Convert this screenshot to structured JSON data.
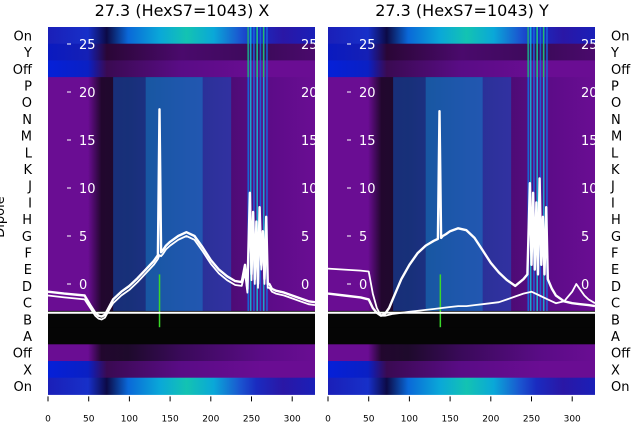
{
  "chart_data": [
    {
      "type": "heatmap",
      "title": "27.3 (HexS7=1043) X",
      "ylabel": "Dipole",
      "dipole_labels": [
        "On",
        "Y",
        "Off",
        "P",
        "O",
        "N",
        "M",
        "L",
        "K",
        "J",
        "I",
        "H",
        "G",
        "F",
        "E",
        "D",
        "C",
        "B",
        "A",
        "Off",
        "X",
        "On"
      ],
      "xticks": [
        0,
        50,
        100,
        150,
        200,
        250,
        300
      ],
      "xlim": [
        0,
        328
      ],
      "overlay_yticks": [
        25,
        20,
        15,
        10,
        5,
        0
      ],
      "overlay_ylim": [
        -4,
        27
      ],
      "baseline_y": -3,
      "series": [
        {
          "x": [
            0,
            20,
            45,
            52,
            58,
            62,
            66,
            70,
            75,
            80,
            90,
            100,
            110,
            120,
            130,
            135,
            137,
            139,
            141,
            145,
            150,
            160,
            170,
            180,
            190,
            200,
            210,
            220,
            230,
            238,
            242,
            245,
            248,
            250,
            252,
            254,
            256,
            258,
            260,
            262,
            264,
            266,
            268,
            270,
            272,
            275,
            280,
            290,
            300,
            310,
            320,
            328
          ],
          "y": [
            -0.8,
            -1.0,
            -1.2,
            -2.2,
            -3.0,
            -3.3,
            -3.4,
            -3.2,
            -2.4,
            -1.6,
            -0.8,
            -0.2,
            0.6,
            1.5,
            2.4,
            3.0,
            18.2,
            3.3,
            3.5,
            4.0,
            4.4,
            5.0,
            5.4,
            5.0,
            3.8,
            2.5,
            1.5,
            0.8,
            0.3,
            0.2,
            2.0,
            -0.5,
            9.5,
            1.0,
            7.5,
            0.5,
            6.5,
            0.0,
            8.0,
            2.0,
            5.5,
            0.5,
            7.0,
            0.0,
            0.0,
            -0.5,
            -0.7,
            -0.9,
            -1.2,
            -1.5,
            -1.8,
            -1.9
          ]
        },
        {
          "x": [
            0,
            20,
            45,
            52,
            58,
            62,
            66,
            70,
            75,
            80,
            90,
            100,
            110,
            120,
            130,
            135,
            137,
            139,
            141,
            145,
            150,
            160,
            170,
            180,
            190,
            200,
            210,
            220,
            230,
            238,
            242,
            245,
            248,
            250,
            252,
            254,
            256,
            258,
            260,
            262,
            264,
            266,
            268,
            270,
            272,
            275,
            280,
            290,
            300,
            310,
            320,
            328
          ],
          "y": [
            -1.2,
            -1.4,
            -1.6,
            -2.5,
            -3.3,
            -3.6,
            -3.7,
            -3.5,
            -2.7,
            -2.0,
            -1.2,
            -0.6,
            0.2,
            1.1,
            2.0,
            2.6,
            3.0,
            2.9,
            3.1,
            3.6,
            4.0,
            4.6,
            5.0,
            4.6,
            3.4,
            2.1,
            1.1,
            0.4,
            -0.1,
            -0.2,
            1.2,
            -0.9,
            7.5,
            0.4,
            6.0,
            0.0,
            5.5,
            -0.4,
            6.5,
            1.5,
            4.5,
            0.0,
            5.5,
            -0.4,
            -0.4,
            -0.8,
            -1.0,
            -1.2,
            -1.5,
            -1.8,
            -2.1,
            -2.2
          ]
        }
      ],
      "green_line_x": 137
    },
    {
      "type": "heatmap",
      "title": "27.3 (HexS7=1043) Y",
      "dipole_labels": [
        "On",
        "Y",
        "Off",
        "P",
        "O",
        "N",
        "M",
        "L",
        "K",
        "J",
        "I",
        "H",
        "G",
        "F",
        "E",
        "D",
        "C",
        "B",
        "A",
        "Off",
        "X",
        "On"
      ],
      "xticks": [
        0,
        50,
        100,
        150,
        200,
        250,
        300
      ],
      "xlim": [
        0,
        328
      ],
      "overlay_yticks": [
        25,
        20,
        15,
        10,
        5,
        0
      ],
      "overlay_ylim": [
        -4,
        27
      ],
      "baseline_y": -3,
      "series": [
        {
          "x": [
            0,
            20,
            40,
            50,
            55,
            60,
            65,
            70,
            75,
            80,
            90,
            100,
            110,
            120,
            130,
            135,
            137,
            139,
            141,
            145,
            150,
            160,
            170,
            180,
            190,
            200,
            210,
            220,
            230,
            240,
            245,
            248,
            250,
            252,
            254,
            256,
            258,
            260,
            262,
            264,
            266,
            268,
            270,
            275,
            280,
            290,
            300,
            310,
            320,
            328
          ],
          "y": [
            -1.0,
            -1.2,
            -1.4,
            -1.6,
            -2.5,
            -3.0,
            -3.3,
            -3.1,
            -2.5,
            -1.5,
            0.5,
            2.0,
            3.2,
            4.0,
            4.5,
            4.7,
            18.0,
            4.8,
            5.0,
            5.2,
            5.5,
            5.8,
            5.6,
            4.8,
            3.5,
            2.2,
            1.2,
            0.4,
            -0.2,
            0.5,
            1.0,
            10.5,
            2.0,
            9.5,
            1.5,
            8.5,
            1.0,
            11.0,
            2.0,
            7.0,
            1.0,
            8.0,
            0.5,
            -0.5,
            -1.2,
            -1.8,
            -2.0,
            -2.1,
            -2.2,
            -2.3
          ]
        },
        {
          "x": [
            0,
            20,
            40,
            50,
            55,
            60,
            65,
            70,
            75,
            80,
            90,
            100,
            110,
            120,
            130,
            140,
            150,
            160,
            170,
            180,
            190,
            200,
            210,
            220,
            230,
            240,
            250,
            260,
            270,
            280,
            290,
            300,
            305,
            310,
            315,
            320,
            328
          ],
          "y": [
            1.6,
            1.5,
            1.4,
            1.3,
            -1.0,
            -2.5,
            -3.3,
            -3.3,
            -3.2,
            -3.1,
            -3.0,
            -2.9,
            -2.8,
            -2.7,
            -2.6,
            -2.5,
            -2.4,
            -2.3,
            -2.3,
            -2.2,
            -2.1,
            -2.0,
            -1.9,
            -1.6,
            -1.3,
            -1.0,
            -0.8,
            -1.2,
            -1.6,
            -2.0,
            -1.8,
            -0.8,
            0.0,
            -0.6,
            -1.2,
            -1.6,
            -2.0
          ]
        }
      ],
      "green_line_x": 138
    }
  ]
}
